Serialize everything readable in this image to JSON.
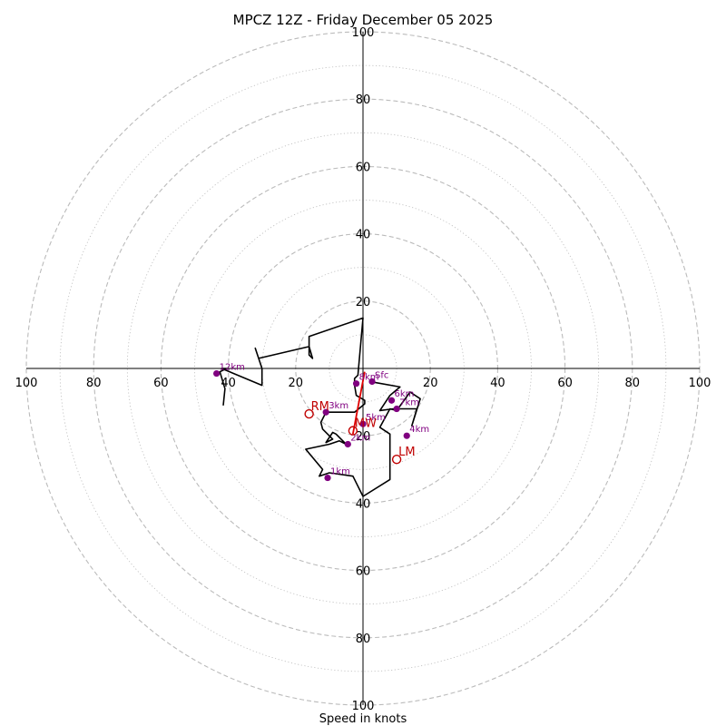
{
  "chart_data": {
    "type": "hodograph",
    "title": "MPCZ 12Z - Friday December 05 2025",
    "xlabel": "Speed in knots",
    "ylim": [
      -100,
      100
    ],
    "xlim": [
      -100,
      100
    ],
    "rings_major": [
      20,
      40,
      60,
      80,
      100
    ],
    "rings_minor": [
      10,
      30,
      50,
      70,
      90
    ],
    "tick_labels": {
      "top": [
        "20",
        "40",
        "60",
        "80",
        "100"
      ],
      "bottom": [
        "20",
        "40",
        "60",
        "80",
        "100"
      ],
      "left": [
        "100",
        "80",
        "60",
        "40",
        "20"
      ],
      "right": [
        "20",
        "40",
        "60",
        "80",
        "100"
      ]
    },
    "colors": {
      "trace": "#000000",
      "mean_wind_vector": "#e00000",
      "height_marker": "#800080",
      "motion_marker": "#c00000",
      "ring": "#bbbbbb"
    },
    "trace": [
      [
        2.6,
        -4
      ],
      [
        11,
        -5.5
      ],
      [
        8,
        -8
      ],
      [
        5,
        -12.5
      ],
      [
        9,
        -12
      ],
      [
        16,
        -12
      ],
      [
        14.5,
        -17
      ],
      [
        17,
        -9
      ],
      [
        14,
        -7
      ],
      [
        10,
        -12.5
      ],
      [
        8,
        -12
      ],
      [
        5,
        -17.5
      ],
      [
        8,
        -19.5
      ],
      [
        8,
        -25
      ],
      [
        8,
        -33
      ],
      [
        0,
        -38
      ],
      [
        -3,
        -32
      ],
      [
        -10,
        -31
      ],
      [
        -13,
        -32
      ],
      [
        -12,
        -30
      ],
      [
        -17,
        -24
      ],
      [
        -10,
        -22.5
      ],
      [
        -7,
        -21.5
      ],
      [
        -5,
        -22.5
      ],
      [
        -8,
        -19.5
      ],
      [
        -9,
        -19
      ],
      [
        -11,
        -22
      ],
      [
        -9,
        -21
      ],
      [
        -12,
        -18
      ],
      [
        -12.5,
        -16
      ],
      [
        -11,
        -13
      ],
      [
        -6,
        -13
      ],
      [
        -2.5,
        -13
      ],
      [
        0.5,
        -10.5
      ],
      [
        0.5,
        -9.5
      ],
      [
        -2,
        -8
      ],
      [
        -2.5,
        -5
      ],
      [
        -2.5,
        -4
      ],
      [
        -2.5,
        -3
      ],
      [
        -1.5,
        -2
      ],
      [
        0,
        15
      ],
      [
        -16,
        9.5
      ],
      [
        -16,
        4
      ],
      [
        -15,
        3
      ],
      [
        -16,
        6.5
      ],
      [
        -31,
        3
      ],
      [
        -32,
        6
      ],
      [
        -31,
        3
      ],
      [
        -30,
        0
      ],
      [
        -30,
        -5
      ],
      [
        -42,
        0
      ],
      [
        -40.5,
        0
      ],
      [
        -42.5,
        -1
      ],
      [
        -41,
        -6
      ],
      [
        -41.5,
        -11
      ]
    ],
    "height_markers": [
      {
        "label": "Sfc",
        "u": 2.7,
        "v": -3.9
      },
      {
        "label": "1km",
        "u": -10.5,
        "v": -32.5
      },
      {
        "label": "2km",
        "u": -4.5,
        "v": -22.5
      },
      {
        "label": "3km",
        "u": -11,
        "v": -13
      },
      {
        "label": "4km",
        "u": 13,
        "v": -20
      },
      {
        "label": "5km",
        "u": 0,
        "v": -16.5
      },
      {
        "label": "6km",
        "u": 8.5,
        "v": -9.5
      },
      {
        "label": "7km",
        "u": 10,
        "v": -12
      },
      {
        "label": "8km",
        "u": -2,
        "v": -4.5
      },
      {
        "label": "12km",
        "u": -43.5,
        "v": -1.5
      }
    ],
    "motion_markers": [
      {
        "label": "RM",
        "u": -16,
        "v": -13.5
      },
      {
        "label": "LM",
        "u": 10,
        "v": -27
      },
      {
        "label": "MW",
        "u": -3,
        "v": -18.5
      }
    ],
    "mean_wind_vector": {
      "from": [
        0.5,
        -1
      ],
      "to": [
        -3,
        -19.5
      ]
    }
  }
}
